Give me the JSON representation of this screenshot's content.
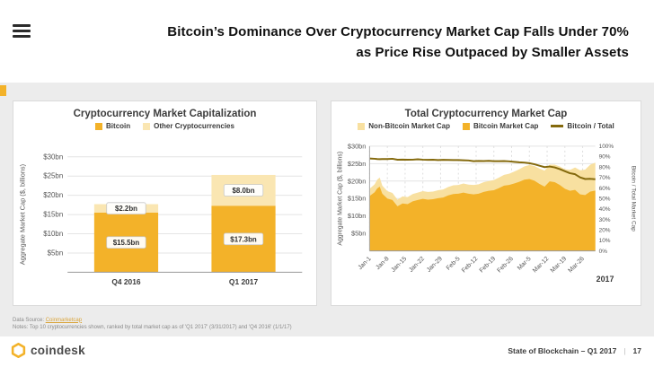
{
  "header": {
    "title_line1": "Bitcoin’s Dominance Over Cryptocurrency Market Cap Falls Under 70%",
    "title_line2": "as Price Rise Outpaced by Smaller Assets"
  },
  "colors": {
    "gold": "#F3B229",
    "light_bar": "#FAE6B2",
    "light_area": "#F8E0A0",
    "dominance_line": "#84690C",
    "accent": "#F3B229"
  },
  "chart_data": [
    {
      "type": "bar",
      "title": "Cryptocurrency Market Capitalization",
      "stacked": true,
      "categories": [
        "Q4 2016",
        "Q1 2017"
      ],
      "series": [
        {
          "name": "Bitcoin",
          "values": [
            15.5,
            17.3
          ],
          "color": "#F3B229"
        },
        {
          "name": "Other Cryptocurrencies",
          "values": [
            2.2,
            8.0
          ],
          "color": "#FAE6B2"
        }
      ],
      "bar_labels": [
        [
          "$15.5bn",
          "$2.2bn"
        ],
        [
          "$17.3bn",
          "$8.0bn"
        ]
      ],
      "ylabel": "Aggregate Market Cap ($, billions)",
      "yticks": [
        "$5bn",
        "$10bn",
        "$15bn",
        "$20bn",
        "$25bn",
        "$30bn"
      ],
      "ytick_values": [
        5,
        10,
        15,
        20,
        25,
        30
      ],
      "ylim": [
        0,
        30
      ],
      "grid": true,
      "legend_position": "top"
    },
    {
      "type": "area",
      "title": "Total Cryptocurrency Market Cap",
      "days": [
        0,
        2,
        3,
        4,
        5,
        7,
        9,
        11,
        13,
        15,
        17,
        19,
        21,
        23,
        25,
        27,
        29,
        31,
        33,
        35,
        37,
        39,
        41,
        43,
        45,
        47,
        49,
        51,
        53,
        55,
        57,
        59,
        61,
        63,
        65,
        67,
        69,
        71,
        73,
        75,
        77,
        79,
        81,
        83,
        85,
        87,
        89
      ],
      "series": [
        {
          "name": "Non-Bitcoin Market Cap",
          "color": "#F8E0A0",
          "values": [
            2.1,
            2.3,
            2.5,
            2.6,
            2.3,
            2.1,
            2.0,
            1.9,
            2.0,
            2.0,
            2.1,
            2.1,
            2.2,
            2.2,
            2.2,
            2.3,
            2.3,
            2.4,
            2.5,
            2.5,
            2.6,
            2.6,
            2.7,
            2.7,
            2.8,
            2.8,
            2.9,
            3.0,
            3.1,
            3.2,
            3.4,
            3.6,
            3.8,
            4.0,
            4.2,
            4.4,
            4.6,
            4.8,
            5.0,
            5.3,
            5.6,
            6.0,
            6.4,
            6.9,
            7.3,
            7.7,
            8.0
          ]
        },
        {
          "name": "Bitcoin Market Cap",
          "color": "#F3B229",
          "values": [
            15.7,
            16.8,
            17.9,
            18.4,
            16.4,
            15.0,
            14.6,
            12.8,
            13.6,
            13.4,
            14.2,
            14.6,
            14.9,
            14.7,
            14.8,
            15.1,
            15.3,
            15.9,
            16.3,
            16.4,
            16.7,
            16.4,
            16.2,
            16.4,
            16.9,
            17.2,
            17.4,
            18.0,
            18.7,
            18.9,
            19.3,
            19.8,
            20.4,
            20.6,
            20.1,
            19.2,
            18.4,
            19.9,
            19.7,
            18.9,
            17.8,
            17.2,
            17.5,
            16.2,
            16.0,
            17.0,
            17.3
          ]
        }
      ],
      "line": {
        "name": "Bitcoin / Total",
        "color": "#84690C",
        "axis": "right",
        "derived": "bitcoin_share_of_total_pct"
      },
      "xticks": [
        {
          "d": 0,
          "label": "Jan-1"
        },
        {
          "d": 7,
          "label": "Jan-8"
        },
        {
          "d": 14,
          "label": "Jan-15"
        },
        {
          "d": 21,
          "label": "Jan-22"
        },
        {
          "d": 28,
          "label": "Jan-29"
        },
        {
          "d": 35,
          "label": "Feb-5"
        },
        {
          "d": 42,
          "label": "Feb-12"
        },
        {
          "d": 49,
          "label": "Feb-19"
        },
        {
          "d": 56,
          "label": "Feb-26"
        },
        {
          "d": 63,
          "label": "Mar-5"
        },
        {
          "d": 70,
          "label": "Mar-12"
        },
        {
          "d": 77,
          "label": "Mar-19"
        },
        {
          "d": 84,
          "label": "Mar-26"
        }
      ],
      "x_axis_year": "2017",
      "ylabel_left": "Aggregate Market Cap ($, billions)",
      "ylabel_right": "Bitcoin / Total Market Cap",
      "yticks_left": [
        "$5bn",
        "$10bn",
        "$15bn",
        "$20bn",
        "$25bn",
        "$30bn"
      ],
      "ytick_left_values": [
        5,
        10,
        15,
        20,
        25,
        30
      ],
      "yticks_right": [
        "0%",
        "10%",
        "20%",
        "30%",
        "40%",
        "50%",
        "60%",
        "70%",
        "80%",
        "90%",
        "100%"
      ],
      "ytick_right_values": [
        0,
        10,
        20,
        30,
        40,
        50,
        60,
        70,
        80,
        90,
        100
      ],
      "ylim_left": [
        0,
        30
      ],
      "ylim_right": [
        0,
        100
      ],
      "grid": true,
      "legend_position": "top"
    }
  ],
  "footnotes": {
    "source_prefix": "Data Source: ",
    "source_link": "Coinmarketcap",
    "notes": "Notes: Top 10 cryptocurrencies shown, ranked by total market cap as of 'Q1 2017' (3/31/2017) and 'Q4 2016' (1/1/17)"
  },
  "footer": {
    "brand": "coindesk",
    "right_text": "State of Blockchain – Q1 2017",
    "divider": "|",
    "page": "17"
  }
}
